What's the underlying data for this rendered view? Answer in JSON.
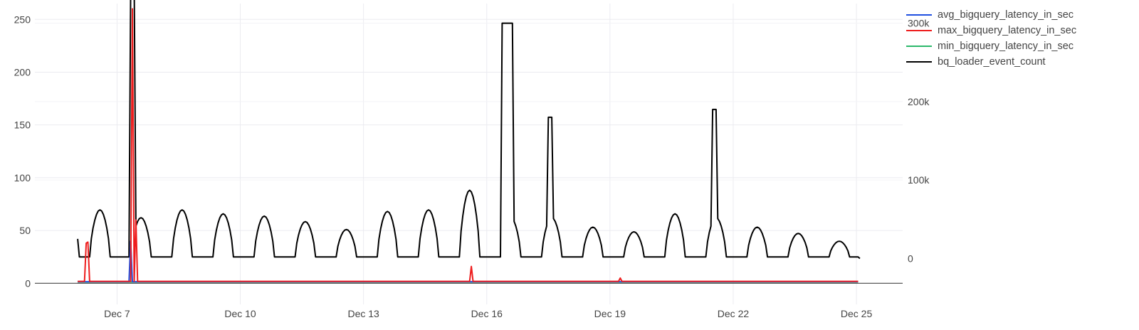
{
  "chart_data": {
    "type": "line",
    "x_axis": {
      "kind": "date",
      "year": 2023,
      "range": [
        "2023-12-05T00:00",
        "2023-12-26T03:00"
      ],
      "tick_labels": [
        "Dec 7",
        "Dec 10",
        "Dec 13",
        "Dec 16",
        "Dec 19",
        "Dec 22",
        "Dec 25"
      ]
    },
    "y_axis_left": {
      "range": [
        -20,
        265
      ],
      "tick_labels": [
        "0",
        "50",
        "100",
        "150",
        "200",
        "250"
      ]
    },
    "y_axis_right": {
      "range": [
        -58500,
        325000
      ],
      "tick_labels": [
        "0",
        "100k",
        "200k",
        "300k"
      ]
    },
    "grid": true,
    "legend_position": "top-right",
    "series": [
      {
        "name": "avg_bigquery_latency_in_sec",
        "color": "#1f4fe0",
        "axis": "left",
        "baseline": 1.5,
        "spikes": [
          {
            "x": "2023-12-07T08:00",
            "y": 40
          }
        ]
      },
      {
        "name": "max_bigquery_latency_in_sec",
        "color": "#ee1d1d",
        "axis": "left",
        "baseline": 1.8,
        "spikes": [
          {
            "x": "2023-12-06T06:00",
            "y": 38
          },
          {
            "x": "2023-12-06T07:30",
            "y": 39
          },
          {
            "x": "2023-12-07T09:00",
            "y": 260
          },
          {
            "x": "2023-12-07T11:00",
            "y": 60
          },
          {
            "x": "2023-12-15T15:00",
            "y": 16
          },
          {
            "x": "2023-12-19T06:00",
            "y": 5
          }
        ]
      },
      {
        "name": "min_bigquery_latency_in_sec",
        "color": "#2cb86b",
        "axis": "left",
        "baseline": 1.2,
        "spikes": []
      },
      {
        "name": "bq_loader_event_count",
        "color": "#000000",
        "axis": "right",
        "daily_peaks": [
          {
            "day": "2023-12-06",
            "peak": 60000
          },
          {
            "day": "2023-12-07",
            "peak": 350000
          },
          {
            "day": "2023-12-08",
            "peak": 60000
          },
          {
            "day": "2023-12-09",
            "peak": 55000
          },
          {
            "day": "2023-12-10",
            "peak": 52000
          },
          {
            "day": "2023-12-11",
            "peak": 45000
          },
          {
            "day": "2023-12-12",
            "peak": 35000
          },
          {
            "day": "2023-12-13",
            "peak": 58000
          },
          {
            "day": "2023-12-14",
            "peak": 60000
          },
          {
            "day": "2023-12-15",
            "peak": 85000
          },
          {
            "day": "2023-12-16",
            "peak": 300000
          },
          {
            "day": "2023-12-17",
            "peak": 180000
          },
          {
            "day": "2023-12-18",
            "peak": 38000
          },
          {
            "day": "2023-12-19",
            "peak": 32000
          },
          {
            "day": "2023-12-20",
            "peak": 55000
          },
          {
            "day": "2023-12-21",
            "peak": 190000
          },
          {
            "day": "2023-12-22",
            "peak": 38000
          },
          {
            "day": "2023-12-23",
            "peak": 30000
          },
          {
            "day": "2023-12-24",
            "peak": 20000
          }
        ],
        "first_value": 25000,
        "last_value": 0
      }
    ]
  }
}
